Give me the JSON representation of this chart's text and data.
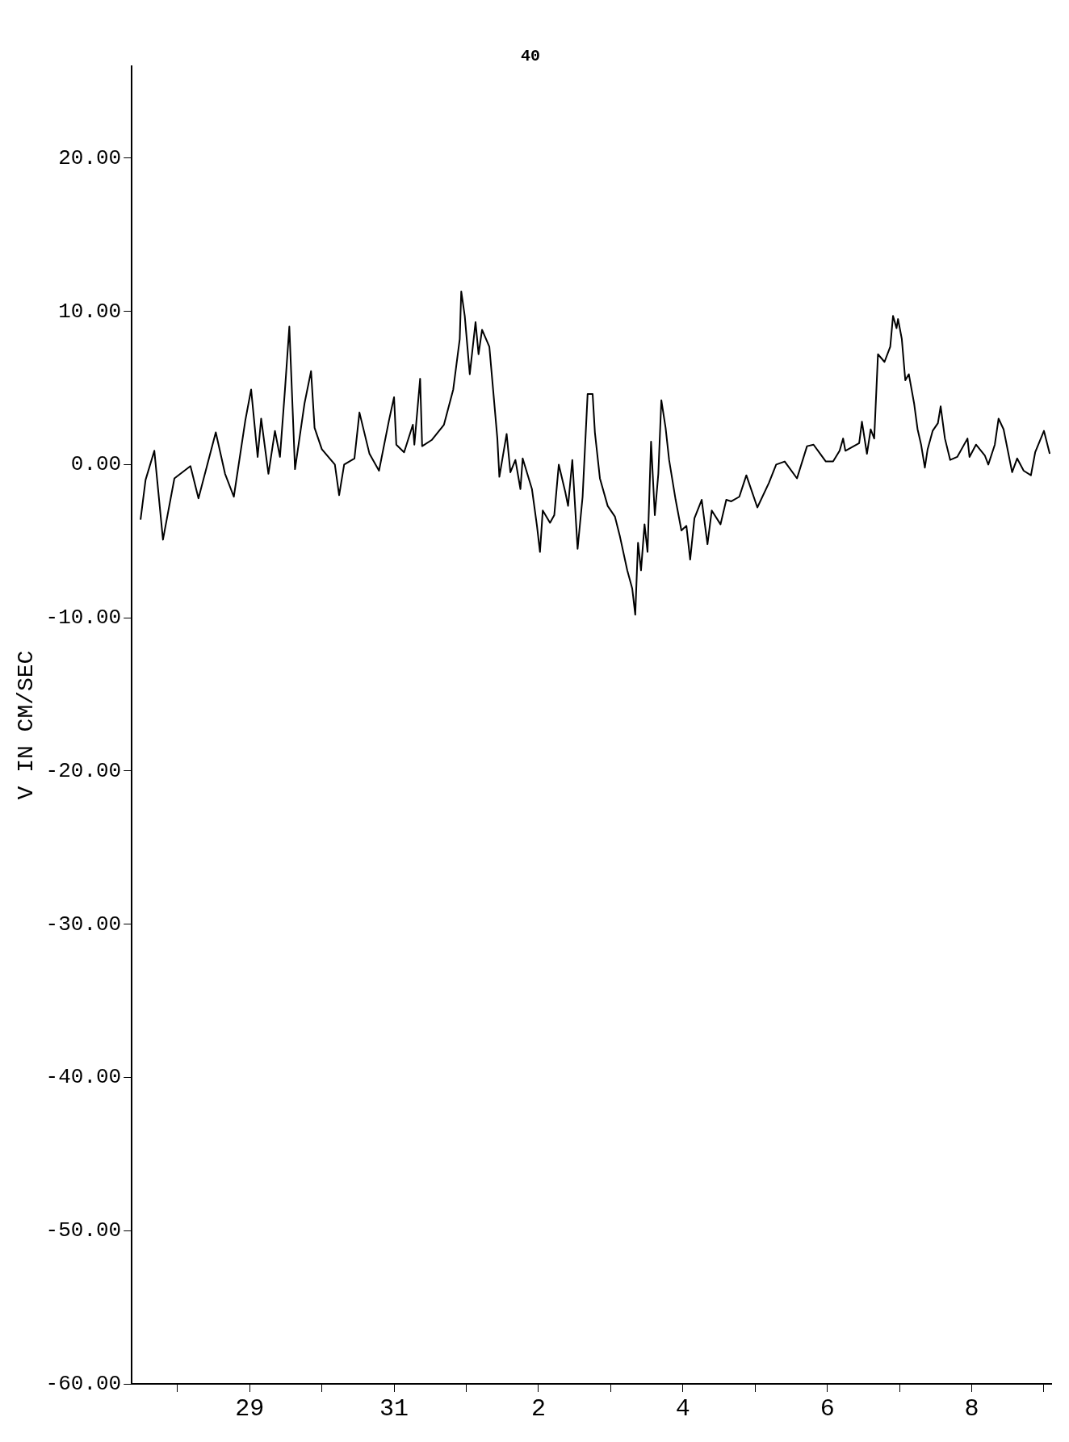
{
  "chart_data": {
    "type": "line",
    "title": "40",
    "ylabel": "V IN CM/SEC",
    "xlim": [
      "--03-27T08:50",
      "--04-09T02:25"
    ],
    "ylim": [
      -60,
      26
    ],
    "xticks": [
      {
        "value": "--03-28",
        "label": null
      },
      {
        "value": "--03-29",
        "label": "29"
      },
      {
        "value": "--03-30",
        "label": null
      },
      {
        "value": "--03-31",
        "label": "31"
      },
      {
        "value": "--04-01",
        "label": null
      },
      {
        "value": "--04-02",
        "label": "2"
      },
      {
        "value": "--04-03",
        "label": null
      },
      {
        "value": "--04-04",
        "label": "4"
      },
      {
        "value": "--04-05",
        "label": null
      },
      {
        "value": "--04-06",
        "label": "6"
      },
      {
        "value": "--04-07",
        "label": null
      },
      {
        "value": "--04-08",
        "label": "8"
      },
      {
        "value": "--04-09",
        "label": null
      }
    ],
    "yticks": [
      {
        "value": -60,
        "label": "-60.00"
      },
      {
        "value": -50,
        "label": "-50.00"
      },
      {
        "value": -40,
        "label": "-40.00"
      },
      {
        "value": -30,
        "label": "-30.00"
      },
      {
        "value": -20,
        "label": "-20.00"
      },
      {
        "value": -10,
        "label": "-10.00"
      },
      {
        "value": 0,
        "label": "0.00"
      },
      {
        "value": 10,
        "label": "10.00"
      },
      {
        "value": 20,
        "label": "20.00"
      }
    ],
    "grid": false,
    "legend": false,
    "marker": "none",
    "line_style": "solid",
    "series": [
      {
        "color": "#000000",
        "x": [
          "--03-27T11:45",
          "--03-27T13:25",
          "--03-27T16:20",
          "--03-27T19:12",
          "--03-27T23:00",
          "--03-28T04:20",
          "--03-28T07:00",
          "--03-28T12:45",
          "--03-28T15:50",
          "--03-28T18:45",
          "--03-28T22:35",
          "--03-29T00:30",
          "--03-29T02:40",
          "--03-29T03:50",
          "--03-29T06:15",
          "--03-29T08:25",
          "--03-29T10:05",
          "--03-29T11:45",
          "--03-29T13:12",
          "--03-29T15:05",
          "--03-29T18:15",
          "--03-29T20:25",
          "--03-29T21:35",
          "--03-30T00:00",
          "--03-30T04:20",
          "--03-30T05:45",
          "--03-30T07:25",
          "--03-30T10:50",
          "--03-30T12:30",
          "--03-30T15:50",
          "--03-30T19:00",
          "--03-30T22:20",
          "--03-31T00:00",
          "--03-31T00:45",
          "--03-31T03:20",
          "--03-31T06:15",
          "--03-31T06:45",
          "--03-31T08:40",
          "--03-31T09:20",
          "--03-31T12:30",
          "--03-31T16:35",
          "--03-31T19:40",
          "--03-31T21:50",
          "--03-31T22:20",
          "--03-31T23:30",
          "--04-01T01:10",
          "--04-01T03:05",
          "--04-01T04:05",
          "--04-01T05:15",
          "--04-01T07:40",
          "--04-01T08:55",
          "--04-01T10:20",
          "--04-01T11:00",
          "--04-01T13:25",
          "--04-01T14:40",
          "--04-01T16:20",
          "--04-01T18:00",
          "--04-01T18:45",
          "--04-01T21:50",
          "--04-01T23:30",
          "--04-02T00:30",
          "--04-02T01:25",
          "--04-02T03:50",
          "--04-02T05:15",
          "--04-02T06:45",
          "--04-02T08:55",
          "--04-02T09:50",
          "--04-02T11:15",
          "--04-02T13:00",
          "--04-02T14:40",
          "--04-02T16:20",
          "--04-02T18:00",
          "--04-02T18:45",
          "--04-02T20:25",
          "--04-02T23:00",
          "--04-03T01:25",
          "--04-03T03:05",
          "--04-03T05:30",
          "--04-03T07:10",
          "--04-03T08:10",
          "--04-03T09:05",
          "--04-03T10:05",
          "--04-03T11:15",
          "--04-03T12:15",
          "--04-03T13:25",
          "--04-03T14:40",
          "--04-03T15:50",
          "--04-03T16:50",
          "--04-03T18:15",
          "--04-03T19:25",
          "--04-03T21:35",
          "--04-03T23:30",
          "--04-04T01:10",
          "--04-04T02:25",
          "--04-04T03:50",
          "--04-04T06:15",
          "--04-04T08:10",
          "--04-04T09:35",
          "--04-04T12:30",
          "--04-04T14:25",
          "--04-04T16:05",
          "--04-04T18:45",
          "--04-04T21:05",
          "--04-05T00:45",
          "--04-05T04:35",
          "--04-05T07:00",
          "--04-05T09:50",
          "--04-05T13:55",
          "--04-05T17:15",
          "--04-05T19:25",
          "--04-05T23:30",
          "--04-06T01:55",
          "--04-06T04:05",
          "--04-06T05:15",
          "--04-06T06:00",
          "--04-06T10:35",
          "--04-06T11:30",
          "--04-06T13:10",
          "--04-06T14:25",
          "--04-06T15:35",
          "--04-06T16:50",
          "--04-06T19:00",
          "--04-06T20:55",
          "--04-06T21:50",
          "--04-06T23:00",
          "--04-06T23:30",
          "--04-07T00:45",
          "--04-07T01:55",
          "--04-07T03:05",
          "--04-07T04:50",
          "--04-07T06:00",
          "--04-07T07:10",
          "--04-07T08:25",
          "--04-07T09:20",
          "--04-07T11:00",
          "--04-07T12:45",
          "--04-07T13:40",
          "--04-07T15:05",
          "--04-07T16:50",
          "--04-07T19:10",
          "--04-07T22:35",
          "--04-07T23:15",
          "--04-08T01:25",
          "--04-08T04:20",
          "--04-08T05:30",
          "--04-08T07:40",
          "--04-08T08:55",
          "--04-08T10:35",
          "--04-08T13:25",
          "--04-08T15:05",
          "--04-08T17:15",
          "--04-08T19:40",
          "--04-08T21:05",
          "--04-09T00:00",
          "--04-09T01:55"
        ],
        "values": [
          -3.6,
          -1.0,
          0.9,
          -4.9,
          -0.9,
          -0.1,
          -2.2,
          2.1,
          -0.6,
          -2.1,
          2.9,
          4.9,
          0.5,
          3.0,
          -0.6,
          2.2,
          0.5,
          4.9,
          9.0,
          -0.3,
          4.0,
          6.1,
          2.4,
          1.0,
          0.0,
          -2.0,
          0.0,
          0.4,
          3.4,
          0.7,
          -0.4,
          2.9,
          4.4,
          1.3,
          0.8,
          2.6,
          1.3,
          5.6,
          1.2,
          1.6,
          2.6,
          4.9,
          8.2,
          11.3,
          9.7,
          5.9,
          9.3,
          7.2,
          8.8,
          7.7,
          4.9,
          1.7,
          -0.8,
          2.0,
          -0.5,
          0.3,
          -1.6,
          0.4,
          -1.6,
          -4.0,
          -5.7,
          -3.0,
          -3.8,
          -3.3,
          0.0,
          -1.8,
          -2.7,
          0.3,
          -5.5,
          -2.1,
          4.6,
          4.6,
          2.1,
          -0.9,
          -2.7,
          -3.4,
          -4.7,
          -6.9,
          -8.1,
          -9.8,
          -5.1,
          -6.9,
          -3.9,
          -5.7,
          1.5,
          -3.3,
          -0.6,
          4.2,
          2.4,
          0.3,
          -2.3,
          -4.3,
          -4.0,
          -6.2,
          -3.5,
          -2.3,
          -5.2,
          -3.0,
          -3.9,
          -2.3,
          -2.4,
          -2.1,
          -0.7,
          -2.8,
          -1.2,
          0.0,
          0.2,
          -0.9,
          1.2,
          1.3,
          0.2,
          0.2,
          0.9,
          1.7,
          0.9,
          1.4,
          2.8,
          0.7,
          2.3,
          1.7,
          7.2,
          6.7,
          7.7,
          9.7,
          8.9,
          9.5,
          8.2,
          5.5,
          5.9,
          4.0,
          2.3,
          1.3,
          -0.2,
          1.0,
          2.2,
          2.7,
          3.8,
          1.7,
          0.3,
          0.5,
          1.7,
          0.5,
          1.3,
          0.6,
          0.0,
          1.3,
          3.0,
          2.3,
          -0.5,
          0.4,
          -0.4,
          -0.7,
          0.8,
          2.2,
          0.7
        ]
      }
    ]
  }
}
